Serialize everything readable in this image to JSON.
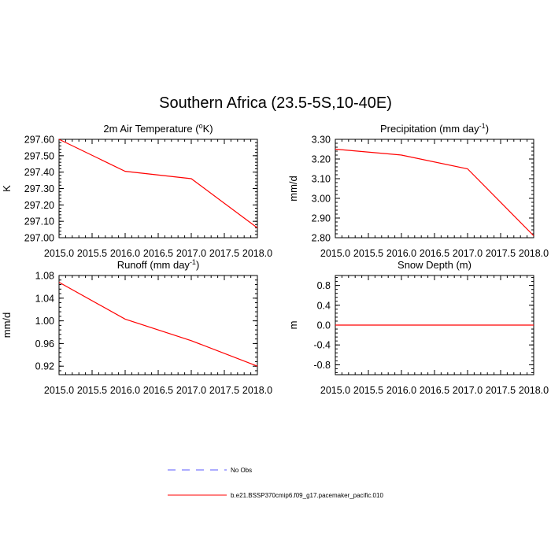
{
  "title": "Southern Africa (23.5-5S,10-40E)",
  "chart_data": [
    {
      "type": "line",
      "title_main": "2m Air Temperature (",
      "title_sup": "o",
      "title_tail": "K)",
      "ylabel": "K",
      "x": [
        2015.0,
        2016.0,
        2017.0,
        2018.0
      ],
      "series": [
        {
          "values": [
            297.6,
            297.405,
            297.36,
            297.06
          ]
        }
      ],
      "xlim": [
        2015.0,
        2018.0
      ],
      "ylim": [
        297.0,
        297.6
      ],
      "xticks": [
        "2015.0",
        "2015.5",
        "2016.0",
        "2016.5",
        "2017.0",
        "2017.5",
        "2018.0"
      ],
      "yticks": [
        "297.00",
        "297.10",
        "297.20",
        "297.30",
        "297.40",
        "297.50",
        "297.60"
      ]
    },
    {
      "type": "line",
      "title_main": "Precipitation (mm day",
      "title_sup": "-1",
      "title_tail": ")",
      "ylabel": "mm/d",
      "x": [
        2015.0,
        2016.0,
        2017.0,
        2018.0
      ],
      "series": [
        {
          "values": [
            3.25,
            3.22,
            3.15,
            2.81
          ]
        }
      ],
      "xlim": [
        2015.0,
        2018.0
      ],
      "ylim": [
        2.8,
        3.3
      ],
      "xticks": [
        "2015.0",
        "2015.5",
        "2016.0",
        "2016.5",
        "2017.0",
        "2017.5",
        "2018.0"
      ],
      "yticks": [
        "2.80",
        "2.90",
        "3.00",
        "3.10",
        "3.20",
        "3.30"
      ]
    },
    {
      "type": "line",
      "title_main": "Runoff (mm day",
      "title_sup": "-1",
      "title_tail": ")",
      "ylabel": "mm/d",
      "x": [
        2015.0,
        2016.0,
        2017.0,
        2018.0
      ],
      "series": [
        {
          "values": [
            1.068,
            1.003,
            0.965,
            0.92
          ]
        }
      ],
      "xlim": [
        2015.0,
        2018.0
      ],
      "ylim": [
        0.905,
        1.08
      ],
      "xticks": [
        "2015.0",
        "2015.5",
        "2016.0",
        "2016.5",
        "2017.0",
        "2017.5",
        "2018.0"
      ],
      "yticks": [
        "0.92",
        "0.96",
        "1.00",
        "1.04",
        "1.08"
      ]
    },
    {
      "type": "line",
      "title_main": "Snow Depth (m)",
      "title_sup": "",
      "title_tail": "",
      "ylabel": "m",
      "x": [
        2015.0,
        2016.0,
        2017.0,
        2018.0
      ],
      "series": [
        {
          "values": [
            0.0,
            0.0,
            0.0,
            0.0
          ]
        }
      ],
      "xlim": [
        2015.0,
        2018.0
      ],
      "ylim": [
        -1.0,
        1.0
      ],
      "xticks": [
        "2015.0",
        "2015.5",
        "2016.0",
        "2016.5",
        "2017.0",
        "2017.5",
        "2018.0"
      ],
      "yticks": [
        "-0.8",
        "-0.4",
        "0.0",
        "0.4",
        "0.8"
      ]
    }
  ],
  "legend": [
    {
      "label": "No Obs",
      "color": "#5a5aff",
      "dashed": true
    },
    {
      "label": "b.e21.BSSP370cmip6.f09_g17.pacemaker_pacific.010",
      "color": "#ff0000",
      "dashed": false
    }
  ],
  "series_color": "#ff0000"
}
